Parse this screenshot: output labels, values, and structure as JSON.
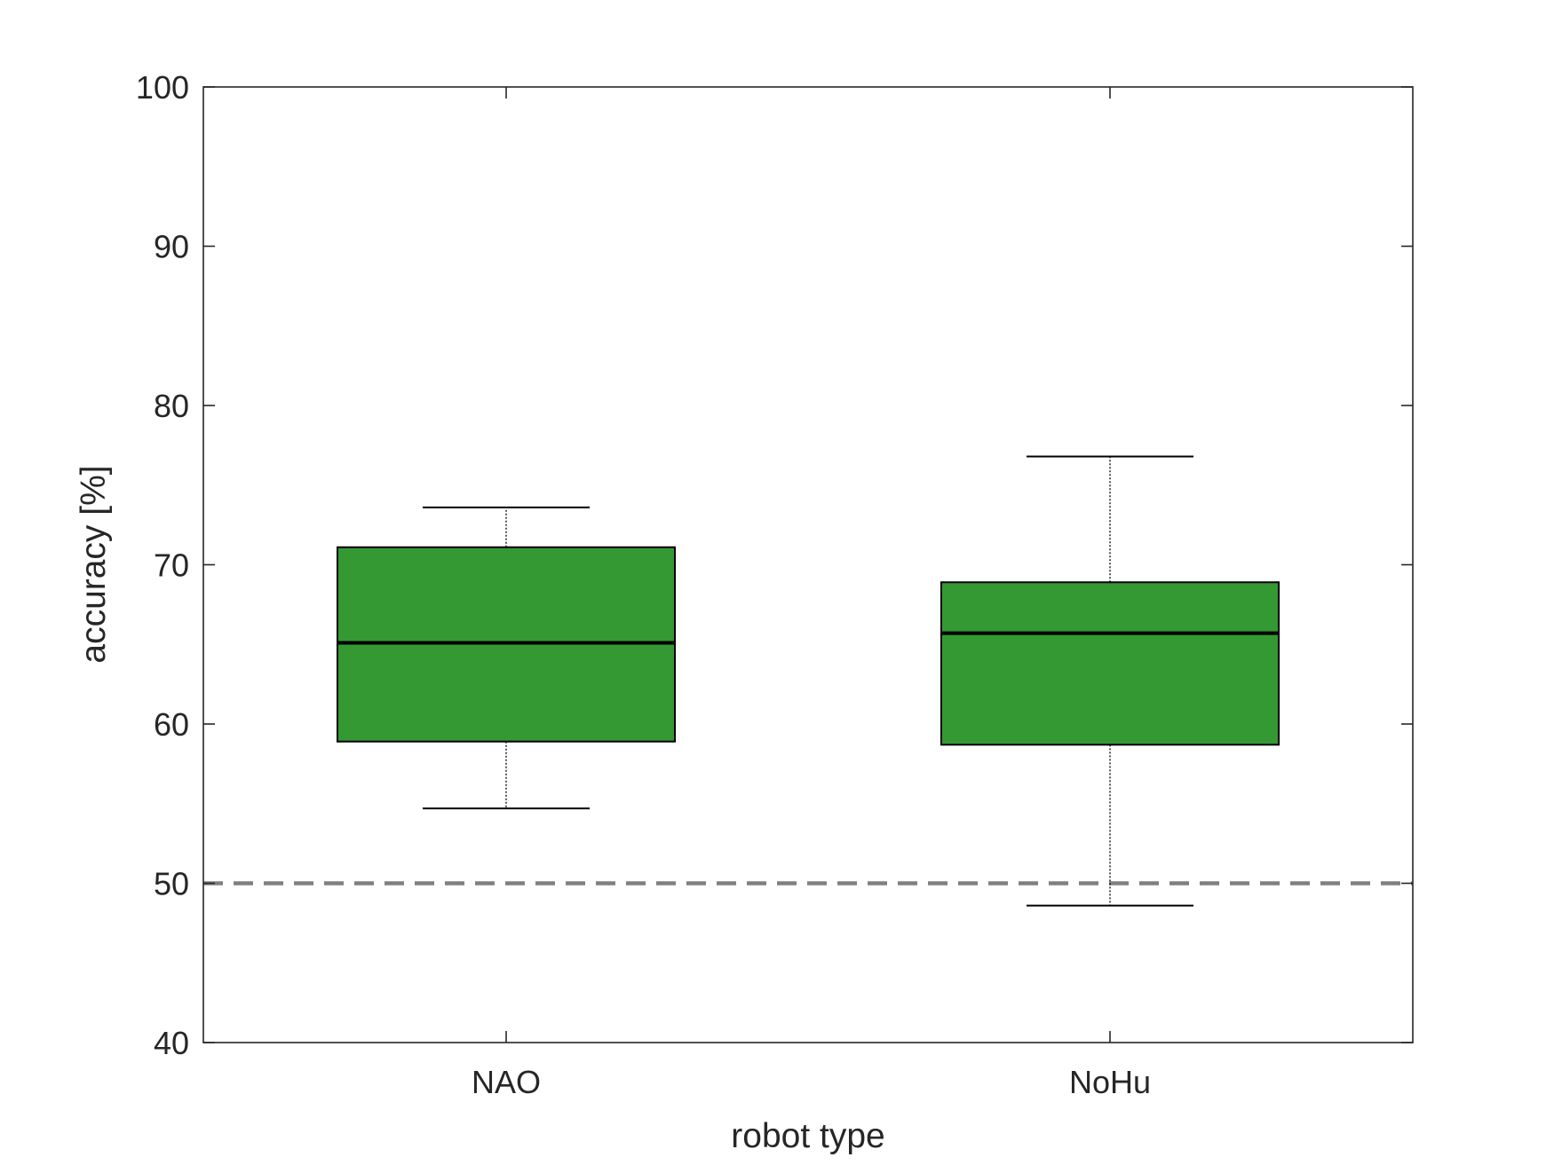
{
  "chart_data": {
    "type": "box",
    "title": "",
    "xlabel": "robot type",
    "ylabel": "accuracy [%]",
    "ylim": [
      40,
      100
    ],
    "yticks": [
      40,
      50,
      60,
      70,
      80,
      90,
      100
    ],
    "categories": [
      "NAO",
      "NoHu"
    ],
    "boxes": [
      {
        "category": "NAO",
        "whisker_low": 54.7,
        "q1": 58.9,
        "median": 65.1,
        "q3": 71.1,
        "whisker_high": 73.6
      },
      {
        "category": "NoHu",
        "whisker_low": 48.6,
        "q1": 58.7,
        "median": 65.7,
        "q3": 68.9,
        "whisker_high": 76.8
      }
    ],
    "reference_line": {
      "y": 50,
      "style": "dashed",
      "color": "#808080"
    },
    "box_color": "#349933",
    "grid": false,
    "legend": "none"
  }
}
